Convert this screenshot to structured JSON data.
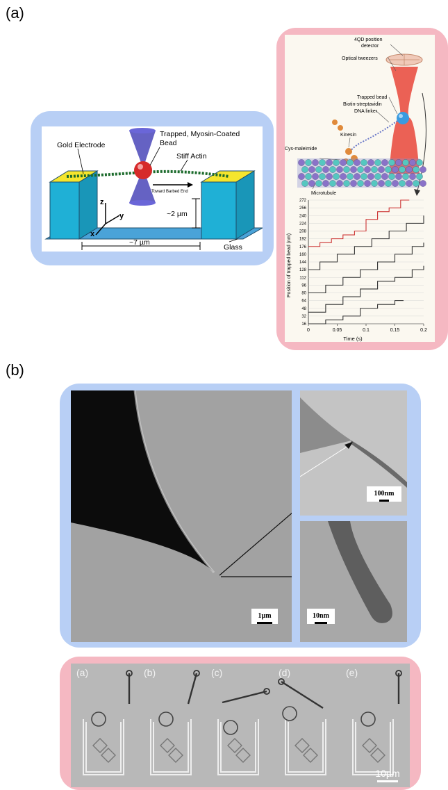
{
  "part_labels": {
    "a": "(a)",
    "b": "(b)"
  },
  "panel_a_left": {
    "gold_electrode": "Gold Electrode",
    "bead_line1": "Trapped, Myosin-Coated",
    "bead_line2": "Bead",
    "stiff_actin": "Stiff Actin",
    "toward_barbed": "Toward Barbed End",
    "axis_z": "z",
    "axis_y": "y",
    "axis_x": "x",
    "height": "~2 µm",
    "width": "~7 µm",
    "glass": "Glass",
    "frame_color": "#b8cff5"
  },
  "panel_a_right": {
    "qd_line1": "4QD position",
    "qd_line2": "detector",
    "optical_tweezers": "Optical tweezers",
    "trapped_bead": "Trapped bead",
    "biotin": "Biotin-streptavidin",
    "dna_linker": "DNA linker",
    "kinesin": "Kinesin",
    "cys": "Cys-maleimide",
    "microtubule": "Microtubule",
    "frame_color": "#f5b8c2"
  },
  "chart_data": {
    "type": "line",
    "xlabel": "Time (s)",
    "ylabel": "Position of trapped bead (nm)",
    "x_ticks": [
      "0",
      "0.05",
      "0.1",
      "0.15",
      "0.2"
    ],
    "y_ticks": [
      "16",
      "32",
      "48",
      "64",
      "80",
      "96",
      "112",
      "128",
      "144",
      "160",
      "176",
      "192",
      "208",
      "224",
      "240",
      "256",
      "272"
    ],
    "xlim": [
      0,
      0.2
    ],
    "ylim": [
      16,
      272
    ],
    "step_nm": 8,
    "series": [
      {
        "color": "#cc3333",
        "x": [
          0.0,
          0.02,
          0.04,
          0.06,
          0.08,
          0.1,
          0.12,
          0.14,
          0.16
        ],
        "y": [
          176,
          184,
          192,
          200,
          208,
          232,
          248,
          256,
          272
        ]
      },
      {
        "color": "#333333",
        "x": [
          0.0,
          0.02,
          0.05,
          0.08,
          0.11,
          0.14,
          0.17,
          0.2
        ],
        "y": [
          128,
          144,
          160,
          176,
          192,
          208,
          224,
          240
        ]
      },
      {
        "color": "#333333",
        "x": [
          0.0,
          0.03,
          0.06,
          0.09,
          0.12,
          0.15,
          0.18,
          0.2
        ],
        "y": [
          80,
          96,
          112,
          128,
          144,
          160,
          176,
          184
        ]
      },
      {
        "color": "#333333",
        "x": [
          0.0,
          0.03,
          0.06,
          0.09,
          0.12,
          0.15,
          0.18,
          0.2
        ],
        "y": [
          40,
          56,
          72,
          88,
          104,
          112,
          128,
          136
        ]
      },
      {
        "color": "#333333",
        "x": [
          0.0,
          0.03,
          0.06,
          0.09,
          0.12,
          0.15
        ],
        "y": [
          16,
          24,
          32,
          48,
          56,
          64
        ]
      }
    ]
  },
  "panel_b_tem": {
    "scale_main": "1µm",
    "scale_top": "100nm",
    "scale_bottom": "10nm",
    "frame_color": "#b8cff5"
  },
  "panel_b_frames": {
    "labels": [
      "(a)",
      "(b)",
      "(c)",
      "(d)",
      "(e)"
    ],
    "scale": "10µm",
    "frame_color": "#f5b8c2"
  }
}
